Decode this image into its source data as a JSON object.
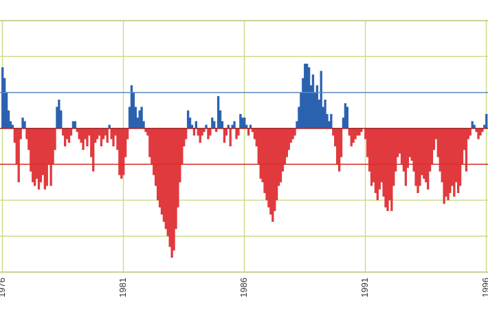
{
  "chart_data": {
    "type": "bar",
    "x": [
      1976.0,
      1976.083,
      1976.167,
      1976.25,
      1976.333,
      1976.417,
      1976.5,
      1976.583,
      1976.667,
      1976.75,
      1976.833,
      1976.917,
      1977.0,
      1977.083,
      1977.167,
      1977.25,
      1977.333,
      1977.417,
      1977.5,
      1977.583,
      1977.667,
      1977.75,
      1977.833,
      1977.917,
      1978.0,
      1978.083,
      1978.167,
      1978.25,
      1978.333,
      1978.417,
      1978.5,
      1978.583,
      1978.667,
      1978.75,
      1978.833,
      1978.917,
      1979.0,
      1979.083,
      1979.167,
      1979.25,
      1979.333,
      1979.417,
      1979.5,
      1979.583,
      1979.667,
      1979.75,
      1979.833,
      1979.917,
      1980.0,
      1980.083,
      1980.167,
      1980.25,
      1980.333,
      1980.417,
      1980.5,
      1980.583,
      1980.667,
      1980.75,
      1980.833,
      1980.917,
      1981.0,
      1981.083,
      1981.167,
      1981.25,
      1981.333,
      1981.417,
      1981.5,
      1981.583,
      1981.667,
      1981.75,
      1981.833,
      1981.917,
      1982.0,
      1982.083,
      1982.167,
      1982.25,
      1982.333,
      1982.417,
      1982.5,
      1982.583,
      1982.667,
      1982.75,
      1982.833,
      1982.917,
      1983.0,
      1983.083,
      1983.167,
      1983.25,
      1983.333,
      1983.417,
      1983.5,
      1983.583,
      1983.667,
      1983.75,
      1983.833,
      1983.917,
      1984.0,
      1984.083,
      1984.167,
      1984.25,
      1984.333,
      1984.417,
      1984.5,
      1984.583,
      1984.667,
      1984.75,
      1984.833,
      1984.917,
      1985.0,
      1985.083,
      1985.167,
      1985.25,
      1985.333,
      1985.417,
      1985.5,
      1985.583,
      1985.667,
      1985.75,
      1985.833,
      1985.917,
      1986.0,
      1986.083,
      1986.167,
      1986.25,
      1986.333,
      1986.417,
      1986.5,
      1986.583,
      1986.667,
      1986.75,
      1986.833,
      1986.917,
      1987.0,
      1987.083,
      1987.167,
      1987.25,
      1987.333,
      1987.417,
      1987.5,
      1987.583,
      1987.667,
      1987.75,
      1987.833,
      1987.917,
      1988.0,
      1988.083,
      1988.167,
      1988.25,
      1988.333,
      1988.417,
      1988.5,
      1988.583,
      1988.667,
      1988.75,
      1988.833,
      1988.917,
      1989.0,
      1989.083,
      1989.167,
      1989.25,
      1989.333,
      1989.417,
      1989.5,
      1989.583,
      1989.667,
      1989.75,
      1989.833,
      1989.917,
      1990.0,
      1990.083,
      1990.167,
      1990.25,
      1990.333,
      1990.417,
      1990.5,
      1990.583,
      1990.667,
      1990.75,
      1990.833,
      1990.917,
      1991.0,
      1991.083,
      1991.167,
      1991.25,
      1991.333,
      1991.417,
      1991.5,
      1991.583,
      1991.667,
      1991.75,
      1991.833,
      1991.917,
      1992.0,
      1992.083,
      1992.167,
      1992.25,
      1992.333,
      1992.417,
      1992.5,
      1992.583,
      1992.667,
      1992.75,
      1992.833,
      1992.917,
      1993.0,
      1993.083,
      1993.167,
      1993.25,
      1993.333,
      1993.417,
      1993.5,
      1993.583,
      1993.667,
      1993.75,
      1993.833,
      1993.917,
      1994.0,
      1994.083,
      1994.167,
      1994.25,
      1994.333,
      1994.417,
      1994.5,
      1994.583,
      1994.667,
      1994.75,
      1994.833,
      1994.917,
      1995.0,
      1995.083,
      1995.167,
      1995.25,
      1995.333,
      1995.417,
      1995.5,
      1995.583,
      1995.667,
      1995.75,
      1995.833,
      1995.917,
      1996.0
    ],
    "values": [
      1.7,
      1.4,
      1.0,
      0.5,
      0.2,
      0.1,
      -0.4,
      -1.0,
      -1.5,
      -0.3,
      0.3,
      0.2,
      -0.3,
      -0.6,
      -1.2,
      -1.5,
      -1.6,
      -1.4,
      -1.7,
      -1.5,
      -1.3,
      -1.7,
      -1.6,
      -1.0,
      -1.6,
      -1.0,
      -0.6,
      0.6,
      0.8,
      0.5,
      -0.2,
      -0.5,
      -0.3,
      -0.4,
      -0.2,
      0.2,
      0.2,
      -0.1,
      -0.3,
      -0.4,
      -0.6,
      -0.3,
      -0.5,
      -0.2,
      -0.8,
      -1.2,
      -0.4,
      -0.3,
      -0.2,
      -0.5,
      -0.3,
      -0.2,
      -0.4,
      0.1,
      -0.3,
      -0.5,
      -0.2,
      -0.6,
      -1.3,
      -1.4,
      -1.3,
      -0.8,
      -0.3,
      0.6,
      1.2,
      1.0,
      0.6,
      0.3,
      0.5,
      0.6,
      0.2,
      -0.1,
      -0.2,
      -0.8,
      -1.0,
      -1.3,
      -1.6,
      -2.0,
      -2.2,
      -2.4,
      -2.6,
      -2.8,
      -3.0,
      -3.3,
      -3.6,
      -3.4,
      -2.8,
      -2.2,
      -1.5,
      -1.0,
      -0.5,
      -0.3,
      0.5,
      0.3,
      0.1,
      -0.2,
      0.2,
      -0.2,
      -0.4,
      -0.2,
      -0.1,
      0.1,
      -0.3,
      -0.2,
      0.3,
      0.2,
      -0.1,
      0.9,
      0.5,
      0.2,
      -0.4,
      -0.2,
      0.1,
      -0.5,
      0.1,
      0.2,
      -0.3,
      -0.2,
      0.4,
      0.3,
      0.3,
      0.1,
      -0.2,
      0.1,
      -0.1,
      -0.3,
      -0.5,
      -1.0,
      -1.4,
      -1.5,
      -1.8,
      -2.0,
      -2.2,
      -2.4,
      -2.6,
      -2.3,
      -2.0,
      -1.6,
      -1.5,
      -1.2,
      -1.0,
      -0.8,
      -0.6,
      -0.4,
      -0.3,
      -0.2,
      0.2,
      0.6,
      1.0,
      1.4,
      1.8,
      1.8,
      1.7,
      1.2,
      1.5,
      1.0,
      1.2,
      0.8,
      1.6,
      0.6,
      0.8,
      0.4,
      0.2,
      0.4,
      -0.2,
      -0.5,
      -1.0,
      -1.2,
      -0.8,
      0.3,
      0.7,
      0.6,
      -0.2,
      -0.5,
      -0.4,
      -0.3,
      -0.2,
      -0.2,
      -0.1,
      0.0,
      -0.3,
      -0.8,
      -1.2,
      -1.6,
      -1.5,
      -1.8,
      -2.0,
      -1.7,
      -1.5,
      -1.9,
      -2.2,
      -2.3,
      -2.0,
      -2.3,
      -1.6,
      -1.2,
      -0.8,
      -0.7,
      -1.0,
      -1.2,
      -1.6,
      -1.1,
      -0.8,
      -0.9,
      -1.2,
      -1.6,
      -1.8,
      -1.6,
      -1.3,
      -1.4,
      -1.5,
      -1.7,
      -1.2,
      -1.0,
      -0.6,
      -0.3,
      -0.8,
      -1.2,
      -1.5,
      -2.1,
      -1.9,
      -2.0,
      -1.8,
      -1.6,
      -1.9,
      -1.5,
      -1.8,
      -1.6,
      -1.0,
      -0.6,
      -1.2,
      -0.3,
      -0.2,
      0.2,
      0.1,
      -0.1,
      -0.3,
      -0.2,
      -0.1,
      0.1,
      0.4
    ],
    "positive_color": "#2b62b0",
    "negative_color": "#e03a3e",
    "xlim": [
      1975.9,
      1996.07
    ],
    "xticks": [
      1976,
      1981,
      1986,
      1991,
      1996
    ],
    "ylim": [
      -4,
      3
    ],
    "yticks": [
      -4,
      -3,
      -2,
      -1,
      0,
      1,
      2,
      3
    ],
    "grid": true,
    "grid_color": "#cddc8c",
    "reference_lines": [
      {
        "value": 1,
        "color": "#5b8ac8"
      },
      {
        "value": -1,
        "color": "#d83030"
      },
      {
        "value": 0,
        "color": "#a02028"
      }
    ]
  }
}
